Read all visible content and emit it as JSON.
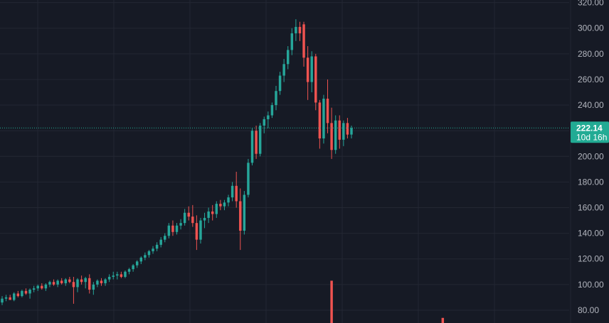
{
  "colors": {
    "background": "#161a25",
    "grid": "#232733",
    "up": "#26a69a",
    "down": "#ef5350",
    "text": "#b2b5be",
    "price_tag": "#22ab94"
  },
  "chart_data": {
    "type": "candlestick",
    "ylim": [
      70,
      322
    ],
    "y_ticks": [
      "320.00",
      "300.00",
      "280.00",
      "260.00",
      "240.00",
      "220.00",
      "200.00",
      "180.00",
      "160.00",
      "140.00",
      "120.00",
      "100.00",
      "80.00"
    ],
    "last_price": {
      "value": 222.14,
      "label": "222.14",
      "countdown": "10d 16h"
    },
    "candles": [
      {
        "o": 86,
        "h": 91,
        "l": 84,
        "c": 89
      },
      {
        "o": 89,
        "h": 92,
        "l": 87,
        "c": 90
      },
      {
        "o": 90,
        "h": 92,
        "l": 88,
        "c": 88
      },
      {
        "o": 88,
        "h": 94,
        "l": 87,
        "c": 93
      },
      {
        "o": 93,
        "h": 95,
        "l": 90,
        "c": 91
      },
      {
        "o": 91,
        "h": 96,
        "l": 90,
        "c": 95
      },
      {
        "o": 95,
        "h": 97,
        "l": 92,
        "c": 93
      },
      {
        "o": 93,
        "h": 97,
        "l": 89,
        "c": 96
      },
      {
        "o": 96,
        "h": 99,
        "l": 94,
        "c": 97
      },
      {
        "o": 97,
        "h": 100,
        "l": 95,
        "c": 99
      },
      {
        "o": 99,
        "h": 101,
        "l": 96,
        "c": 97
      },
      {
        "o": 97,
        "h": 101,
        "l": 95,
        "c": 100
      },
      {
        "o": 100,
        "h": 103,
        "l": 98,
        "c": 102
      },
      {
        "o": 102,
        "h": 104,
        "l": 99,
        "c": 100
      },
      {
        "o": 100,
        "h": 104,
        "l": 98,
        "c": 103
      },
      {
        "o": 103,
        "h": 105,
        "l": 100,
        "c": 101
      },
      {
        "o": 101,
        "h": 105,
        "l": 99,
        "c": 104
      },
      {
        "o": 104,
        "h": 106,
        "l": 101,
        "c": 102
      },
      {
        "o": 102,
        "h": 106,
        "l": 85,
        "c": 98
      },
      {
        "o": 98,
        "h": 105,
        "l": 94,
        "c": 104
      },
      {
        "o": 104,
        "h": 107,
        "l": 100,
        "c": 102
      },
      {
        "o": 102,
        "h": 106,
        "l": 97,
        "c": 105
      },
      {
        "o": 105,
        "h": 108,
        "l": 93,
        "c": 96
      },
      {
        "o": 96,
        "h": 102,
        "l": 92,
        "c": 100
      },
      {
        "o": 100,
        "h": 104,
        "l": 98,
        "c": 103
      },
      {
        "o": 103,
        "h": 105,
        "l": 99,
        "c": 101
      },
      {
        "o": 101,
        "h": 105,
        "l": 99,
        "c": 104
      },
      {
        "o": 104,
        "h": 108,
        "l": 102,
        "c": 106
      },
      {
        "o": 106,
        "h": 110,
        "l": 104,
        "c": 107
      },
      {
        "o": 107,
        "h": 110,
        "l": 104,
        "c": 108
      },
      {
        "o": 108,
        "h": 110,
        "l": 105,
        "c": 106
      },
      {
        "o": 106,
        "h": 111,
        "l": 105,
        "c": 110
      },
      {
        "o": 110,
        "h": 113,
        "l": 108,
        "c": 112
      },
      {
        "o": 112,
        "h": 116,
        "l": 110,
        "c": 115
      },
      {
        "o": 115,
        "h": 119,
        "l": 113,
        "c": 118
      },
      {
        "o": 118,
        "h": 122,
        "l": 116,
        "c": 121
      },
      {
        "o": 121,
        "h": 125,
        "l": 119,
        "c": 123
      },
      {
        "o": 123,
        "h": 127,
        "l": 121,
        "c": 126
      },
      {
        "o": 126,
        "h": 130,
        "l": 124,
        "c": 128
      },
      {
        "o": 128,
        "h": 133,
        "l": 126,
        "c": 131
      },
      {
        "o": 131,
        "h": 137,
        "l": 129,
        "c": 135
      },
      {
        "o": 135,
        "h": 140,
        "l": 133,
        "c": 138
      },
      {
        "o": 138,
        "h": 148,
        "l": 136,
        "c": 146
      },
      {
        "o": 146,
        "h": 150,
        "l": 138,
        "c": 141
      },
      {
        "o": 141,
        "h": 148,
        "l": 139,
        "c": 146
      },
      {
        "o": 146,
        "h": 151,
        "l": 143,
        "c": 148
      },
      {
        "o": 148,
        "h": 159,
        "l": 146,
        "c": 156
      },
      {
        "o": 156,
        "h": 161,
        "l": 150,
        "c": 153
      },
      {
        "o": 153,
        "h": 162,
        "l": 145,
        "c": 148
      },
      {
        "o": 148,
        "h": 154,
        "l": 127,
        "c": 135
      },
      {
        "o": 135,
        "h": 152,
        "l": 132,
        "c": 150
      },
      {
        "o": 150,
        "h": 156,
        "l": 144,
        "c": 152
      },
      {
        "o": 152,
        "h": 160,
        "l": 148,
        "c": 157
      },
      {
        "o": 157,
        "h": 162,
        "l": 150,
        "c": 155
      },
      {
        "o": 155,
        "h": 165,
        "l": 152,
        "c": 163
      },
      {
        "o": 163,
        "h": 166,
        "l": 158,
        "c": 161
      },
      {
        "o": 161,
        "h": 166,
        "l": 158,
        "c": 164
      },
      {
        "o": 164,
        "h": 170,
        "l": 161,
        "c": 168
      },
      {
        "o": 168,
        "h": 180,
        "l": 165,
        "c": 177
      },
      {
        "o": 177,
        "h": 188,
        "l": 160,
        "c": 165
      },
      {
        "o": 165,
        "h": 175,
        "l": 127,
        "c": 142
      },
      {
        "o": 142,
        "h": 173,
        "l": 139,
        "c": 170
      },
      {
        "o": 170,
        "h": 198,
        "l": 168,
        "c": 195
      },
      {
        "o": 195,
        "h": 222,
        "l": 193,
        "c": 220
      },
      {
        "o": 220,
        "h": 224,
        "l": 198,
        "c": 202
      },
      {
        "o": 202,
        "h": 226,
        "l": 200,
        "c": 224
      },
      {
        "o": 224,
        "h": 231,
        "l": 218,
        "c": 229
      },
      {
        "o": 229,
        "h": 235,
        "l": 222,
        "c": 232
      },
      {
        "o": 232,
        "h": 242,
        "l": 230,
        "c": 240
      },
      {
        "o": 240,
        "h": 255,
        "l": 236,
        "c": 251
      },
      {
        "o": 251,
        "h": 266,
        "l": 248,
        "c": 263
      },
      {
        "o": 263,
        "h": 276,
        "l": 258,
        "c": 272
      },
      {
        "o": 272,
        "h": 286,
        "l": 268,
        "c": 283
      },
      {
        "o": 283,
        "h": 300,
        "l": 279,
        "c": 296
      },
      {
        "o": 296,
        "h": 307,
        "l": 290,
        "c": 301
      },
      {
        "o": 301,
        "h": 305,
        "l": 290,
        "c": 296
      },
      {
        "o": 303,
        "h": 305,
        "l": 270,
        "c": 277
      },
      {
        "o": 277,
        "h": 286,
        "l": 244,
        "c": 258
      },
      {
        "o": 258,
        "h": 282,
        "l": 250,
        "c": 278
      },
      {
        "o": 278,
        "h": 280,
        "l": 236,
        "c": 242
      },
      {
        "o": 242,
        "h": 244,
        "l": 206,
        "c": 214
      },
      {
        "o": 214,
        "h": 248,
        "l": 210,
        "c": 245
      },
      {
        "o": 245,
        "h": 260,
        "l": 218,
        "c": 226
      },
      {
        "o": 226,
        "h": 238,
        "l": 198,
        "c": 205
      },
      {
        "o": 205,
        "h": 232,
        "l": 202,
        "c": 228
      },
      {
        "o": 228,
        "h": 232,
        "l": 206,
        "c": 213
      },
      {
        "o": 213,
        "h": 228,
        "l": 208,
        "c": 226
      },
      {
        "o": 226,
        "h": 230,
        "l": 214,
        "c": 217
      },
      {
        "o": 217,
        "h": 224,
        "l": 214,
        "c": 222.14
      }
    ],
    "volume": [
      {
        "index": 83,
        "top": 103,
        "dir": "down"
      },
      {
        "index": 111,
        "top": 74,
        "dir": "down"
      },
      {
        "index": 112,
        "top": 67,
        "dir": "down"
      }
    ]
  }
}
